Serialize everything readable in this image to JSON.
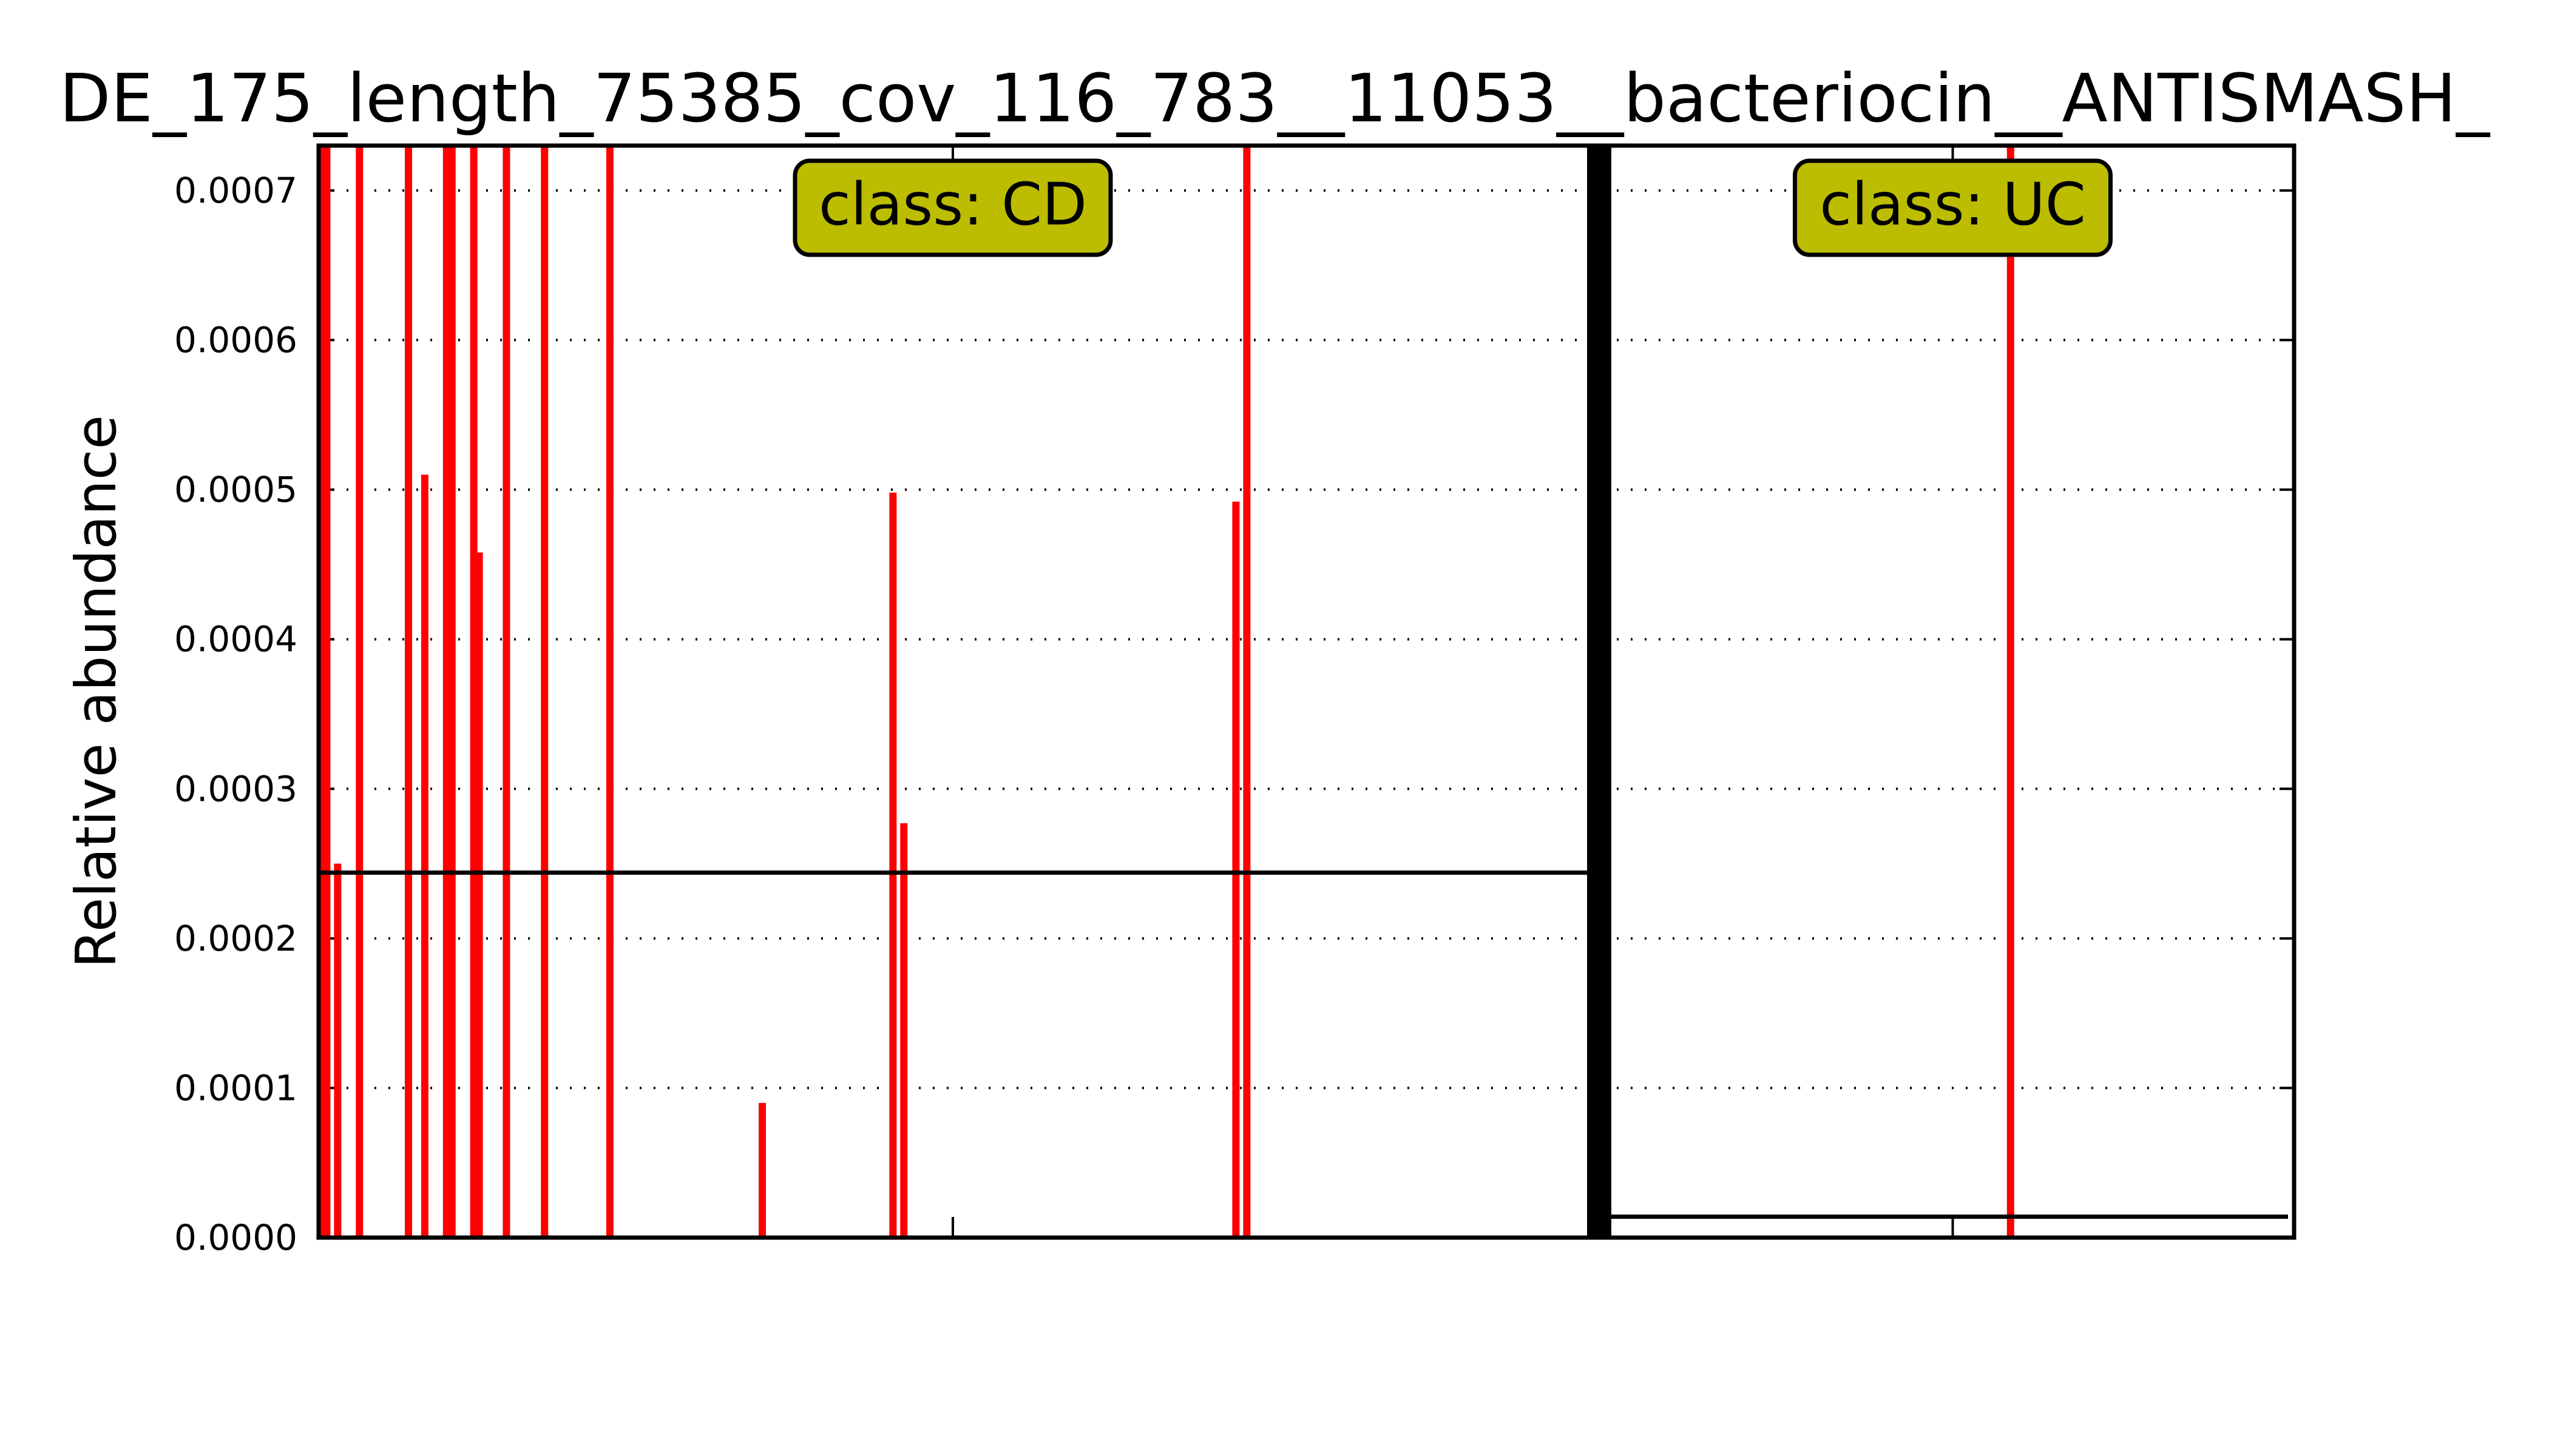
{
  "chart_data": {
    "type": "bar",
    "title": "DE_175_length_75385_cov_116_783__11053__bacteriocin__ANTISMASH_",
    "xlabel": "",
    "ylabel": "Relative abundance",
    "ylim": [
      0,
      0.00073
    ],
    "yticks": [
      "0.0000",
      "0.0001",
      "0.0002",
      "0.0003",
      "0.0004",
      "0.0005",
      "0.0006",
      "0.0007"
    ],
    "grid": "horizontal dotted",
    "bar_color": "#ff0000",
    "mean_line_color": "#000000",
    "class_box_color": "#bcbd00",
    "groups": [
      {
        "label": "class: CD",
        "n_samples": 233,
        "mean": 0.000244,
        "bars": [
          {
            "sample": 1,
            "value": 0.00073
          },
          {
            "sample": 2,
            "value": 0.00073
          },
          {
            "sample": 4,
            "value": 0.00025
          },
          {
            "sample": 8,
            "value": 0.00073
          },
          {
            "sample": 17,
            "value": 0.00073
          },
          {
            "sample": 20,
            "value": 0.00051
          },
          {
            "sample": 24,
            "value": 0.00073
          },
          {
            "sample": 25,
            "value": 0.00073
          },
          {
            "sample": 29,
            "value": 0.00073
          },
          {
            "sample": 30,
            "value": 0.000458
          },
          {
            "sample": 35,
            "value": 0.00073
          },
          {
            "sample": 42,
            "value": 0.00073
          },
          {
            "sample": 54,
            "value": 0.00073
          },
          {
            "sample": 82,
            "value": 9e-05
          },
          {
            "sample": 106,
            "value": 0.000498
          },
          {
            "sample": 108,
            "value": 0.000277
          },
          {
            "sample": 169,
            "value": 0.000492
          },
          {
            "sample": 171,
            "value": 0.00073
          }
        ]
      },
      {
        "label": "class: UC",
        "n_samples": 124,
        "mean": 1.4e-05,
        "bars": [
          {
            "sample": 73,
            "value": 0.00073
          }
        ]
      }
    ]
  }
}
